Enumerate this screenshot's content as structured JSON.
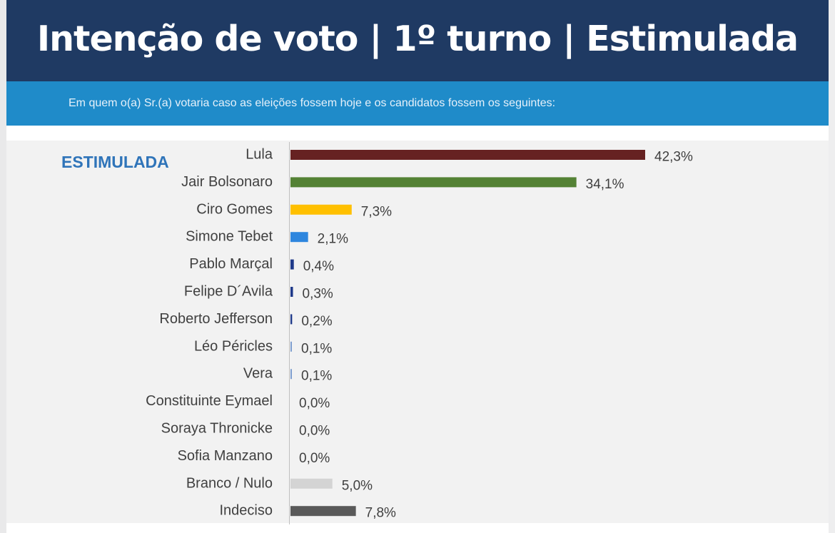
{
  "header": {
    "title": "Intenção de voto | 1º turno | Estimulada",
    "subtitle": "Em quem o(a) Sr.(a) votaria caso as eleições fossem hoje e os candidatos fossem os seguintes:",
    "title_bg": "#1f3a63",
    "subtitle_bg": "#1f8bc9"
  },
  "chart_data": {
    "type": "bar",
    "orientation": "horizontal",
    "badge": "ESTIMULADA",
    "categories": [
      "Lula",
      "Jair Bolsonaro",
      "Ciro Gomes",
      "Simone Tebet",
      "Pablo Marçal",
      "Felipe D´Avila",
      "Roberto Jefferson",
      "Léo Péricles",
      "Vera",
      "Constituinte Eymael",
      "Soraya Thronicke",
      "Sofia Manzano",
      "Branco / Nulo",
      "Indeciso"
    ],
    "values": [
      42.3,
      34.1,
      7.3,
      2.1,
      0.4,
      0.3,
      0.2,
      0.1,
      0.1,
      0.0,
      0.0,
      0.0,
      5.0,
      7.8
    ],
    "value_labels": [
      "42,3%",
      "34,1%",
      "7,3%",
      "2,1%",
      "0,4%",
      "0,3%",
      "0,2%",
      "0,1%",
      "0,1%",
      "0,0%",
      "0,0%",
      "0,0%",
      "5,0%",
      "7,8%"
    ],
    "colors": [
      "#662222",
      "#548235",
      "#ffc000",
      "#2e86de",
      "#1f3a8a",
      "#1f3a8a",
      "#1f3a8a",
      "#7f9fd0",
      "#7f9fd0",
      "#cccccc",
      "#cccccc",
      "#cccccc",
      "#d4d4d4",
      "#595959"
    ],
    "xlim": [
      0,
      42.3
    ],
    "grid": false,
    "legend": "none"
  }
}
